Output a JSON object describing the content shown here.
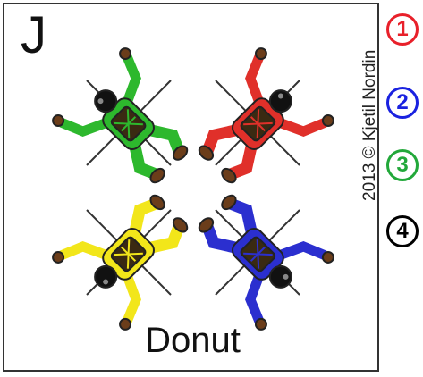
{
  "card": {
    "letter": "J",
    "caption": "Donut",
    "copyright": "2013 © Kjetil Nordin"
  },
  "jumpers": [
    {
      "name": "green-jumper",
      "color": "#2db82d"
    },
    {
      "name": "red-jumper",
      "color": "#e0302a"
    },
    {
      "name": "yellow-jumper",
      "color": "#f2e61a"
    },
    {
      "name": "blue-jumper",
      "color": "#2b2fcf"
    }
  ],
  "slots": [
    {
      "label": "1",
      "color": "#e8202a"
    },
    {
      "label": "2",
      "color": "#1a22e0"
    },
    {
      "label": "3",
      "color": "#22a83a"
    },
    {
      "label": "4",
      "color": "#000000"
    }
  ]
}
